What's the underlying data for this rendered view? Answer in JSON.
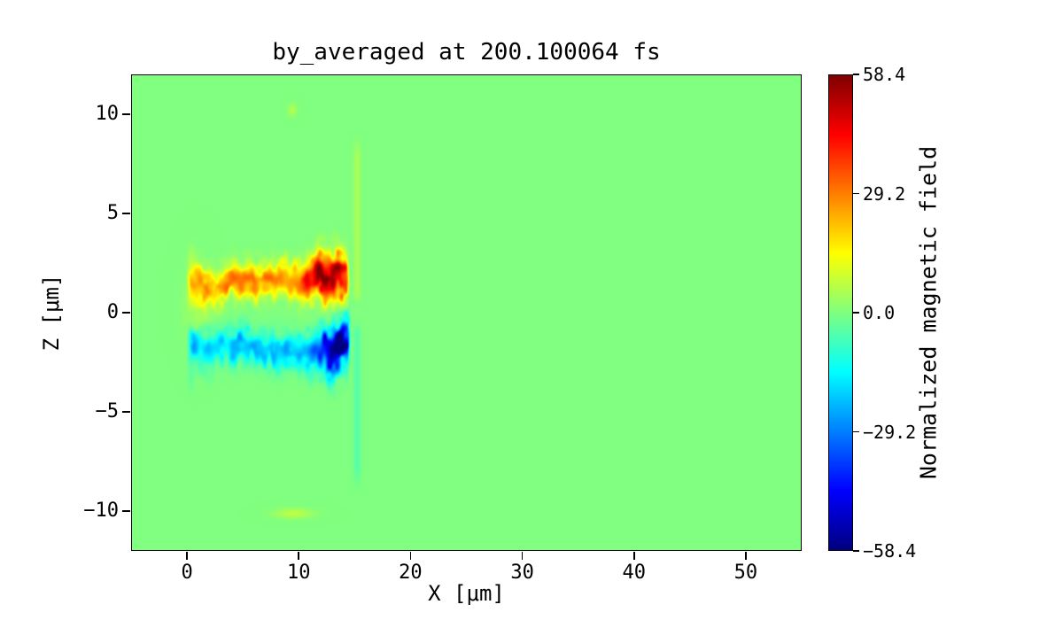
{
  "chart_data": {
    "type": "heatmap",
    "title": "by_averaged at 200.100064 fs",
    "xlabel": "X [μm]",
    "ylabel": "Z [μm]",
    "xlim": [
      -5,
      55
    ],
    "ylim": [
      -12,
      12
    ],
    "grid": false,
    "x_ticks": {
      "values": [
        0,
        10,
        20,
        30,
        40,
        50
      ],
      "labels": [
        "0",
        "10",
        "20",
        "30",
        "40",
        "50"
      ]
    },
    "y_ticks": {
      "values": [
        -10,
        -5,
        0,
        5,
        10
      ],
      "labels": [
        "−10",
        "−5",
        "0",
        "5",
        "10"
      ]
    },
    "colorbar": {
      "label": "Normalized magnetic field",
      "vmin": -58.4,
      "vmax": 58.4,
      "tick_values": [
        58.4,
        29.2,
        0,
        -29.2,
        -58.4
      ],
      "tick_labels": [
        "58.4",
        "29.2",
        "0.0",
        "−29.2",
        "−58.4"
      ],
      "colormap": "jet",
      "position": "right"
    },
    "background_value": 0.0,
    "features": [
      {
        "kind": "band",
        "label": "positive-field-lobe",
        "sign": 1,
        "x0": -0.2,
        "x1": 14.6,
        "edge_l": 0.8,
        "edge_r": 0.45,
        "z_center": 1.45,
        "z_wiggle": 0.4,
        "wiggle_freq": 0.5,
        "z_width": 0.78,
        "z_width_peak": 0.32,
        "peak_x": 13.0,
        "peak_sigma": 2.3,
        "amp_base": 26,
        "amp_peak": 32,
        "ragged": 0.28,
        "mottle": 0.3,
        "seed": 1
      },
      {
        "kind": "band",
        "label": "negative-field-lobe",
        "sign": -1,
        "x0": -0.2,
        "x1": 14.7,
        "edge_l": 0.8,
        "edge_r": 0.45,
        "z_center": -1.65,
        "z_wiggle": 0.4,
        "wiggle_freq": 0.55,
        "z_width": 0.8,
        "z_width_peak": 0.3,
        "peak_x": 13.6,
        "peak_sigma": 2.2,
        "amp_base": 21,
        "amp_peak": 37,
        "ragged": 0.28,
        "mottle": 0.3,
        "seed": 5
      },
      {
        "kind": "vstreak",
        "label": "front-vertical-streak",
        "x": 15.2,
        "sigma": 0.32,
        "z_min": -9.2,
        "z_max": 9.2,
        "fade": 1.6,
        "amp_above": 5,
        "amp_below": -5
      },
      {
        "kind": "vstreak",
        "label": "left-vertical-streak",
        "x": 0.3,
        "sigma": 0.28,
        "z_min": -4.5,
        "z_max": 4.0,
        "fade": 1.5,
        "amp_above": 4,
        "amp_below": -3.5
      },
      {
        "kind": "blob",
        "label": "left-haze",
        "x": 0.8,
        "z": 0.4,
        "sx": 1.1,
        "sz": 1.7,
        "amp": 5
      },
      {
        "kind": "blob",
        "label": "bottom-smudge",
        "x": 9.5,
        "z": -10.15,
        "sx": 1.7,
        "sz": 0.25,
        "amp": 7
      },
      {
        "kind": "blob",
        "label": "top-speck",
        "x": 9.4,
        "z": 10.25,
        "sx": 0.4,
        "sz": 0.3,
        "amp": 6
      }
    ]
  }
}
